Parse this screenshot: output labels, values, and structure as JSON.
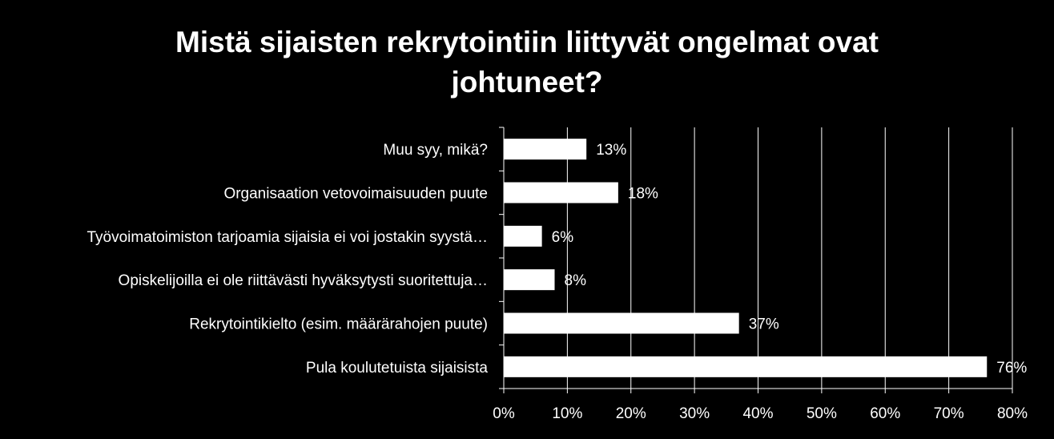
{
  "chart_data": {
    "type": "bar",
    "orientation": "horizontal",
    "title_lines": [
      "Mistä sijaisten rekrytointiin liittyvät ongelmat ovat",
      "johtuneet?"
    ],
    "categories": [
      "Muu syy, mikä?",
      "Organisaation vetovoimaisuuden puute",
      "Työvoimatoimiston tarjoamia sijaisia ei voi jostakin syystä…",
      "Opiskelijoilla ei ole riittävästi hyväksytysti suoritettuja…",
      "Rekrytointikielto (esim. määrärahojen puute)",
      "Pula koulutetuista sijaisista"
    ],
    "values": [
      13,
      18,
      6,
      8,
      37,
      76
    ],
    "value_labels": [
      "13%",
      "18%",
      "6%",
      "8%",
      "37%",
      "76%"
    ],
    "xlim": [
      0,
      80
    ],
    "x_ticks": [
      "0%",
      "10%",
      "20%",
      "30%",
      "40%",
      "50%",
      "60%",
      "70%",
      "80%"
    ],
    "grid": true,
    "colors": {
      "background": "#000000",
      "bar": "#ffffff",
      "grid": "#ffffff",
      "text": "#ffffff"
    }
  }
}
